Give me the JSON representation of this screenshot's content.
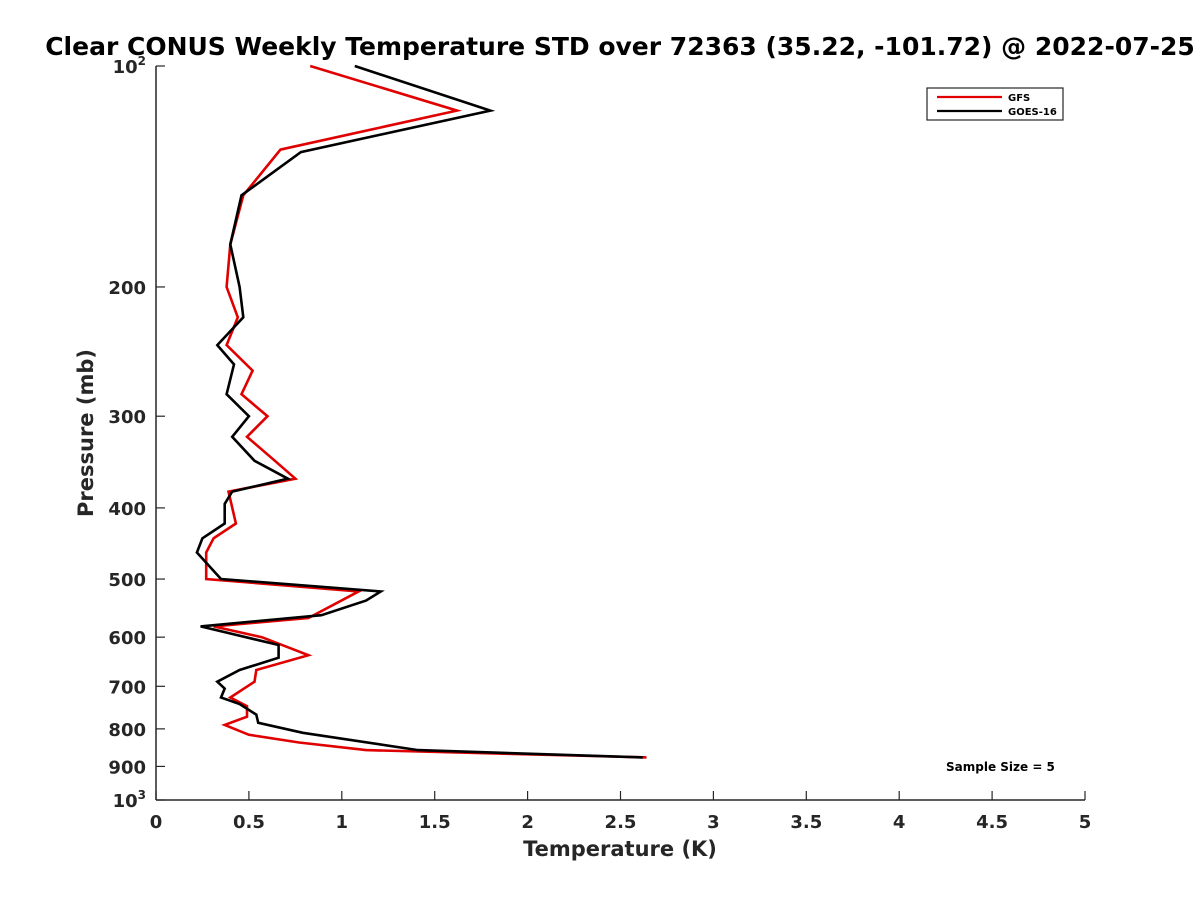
{
  "chart_data": {
    "type": "line",
    "title": "Clear CONUS Weekly Temperature STD over 72363 (35.22, -101.72) @ 2022-07-25",
    "xlabel": "Temperature (K)",
    "ylabel": "Pressure (mb)",
    "xlim": [
      0,
      5
    ],
    "ylim": [
      100,
      1000
    ],
    "y_scale": "log",
    "y_reversed": true,
    "grid": false,
    "legend_position": "top-right",
    "x_ticks": [
      "0",
      "0.5",
      "1",
      "1.5",
      "2",
      "2.5",
      "3",
      "3.5",
      "4",
      "4.5",
      "5"
    ],
    "x_tick_values": [
      0,
      0.5,
      1,
      1.5,
      2,
      2.5,
      3,
      3.5,
      4,
      4.5,
      5
    ],
    "y_ticks": [
      {
        "value": 100,
        "base": "10",
        "exp": "2"
      },
      {
        "value": 200,
        "label": "200"
      },
      {
        "value": 300,
        "label": "300"
      },
      {
        "value": 400,
        "label": "400"
      },
      {
        "value": 500,
        "label": "500"
      },
      {
        "value": 600,
        "label": "600"
      },
      {
        "value": 700,
        "label": "700"
      },
      {
        "value": 800,
        "label": "800"
      },
      {
        "value": 900,
        "label": "900"
      },
      {
        "value": 1000,
        "base": "10",
        "exp": "3"
      }
    ],
    "annotation": "Sample Size = 5",
    "series": [
      {
        "name": "GFS",
        "color": "#e00000",
        "points": [
          [
            0.83,
            100
          ],
          [
            1.62,
            115
          ],
          [
            0.67,
            130
          ],
          [
            0.47,
            150
          ],
          [
            0.4,
            175
          ],
          [
            0.38,
            200
          ],
          [
            0.44,
            220
          ],
          [
            0.38,
            240
          ],
          [
            0.52,
            260
          ],
          [
            0.46,
            280
          ],
          [
            0.6,
            300
          ],
          [
            0.49,
            320
          ],
          [
            0.64,
            345
          ],
          [
            0.75,
            365
          ],
          [
            0.39,
            380
          ],
          [
            0.43,
            420
          ],
          [
            0.31,
            440
          ],
          [
            0.27,
            460
          ],
          [
            0.27,
            500
          ],
          [
            1.09,
            520
          ],
          [
            0.82,
            565
          ],
          [
            0.31,
            580
          ],
          [
            0.57,
            600
          ],
          [
            0.82,
            635
          ],
          [
            0.54,
            665
          ],
          [
            0.53,
            690
          ],
          [
            0.4,
            725
          ],
          [
            0.49,
            745
          ],
          [
            0.49,
            770
          ],
          [
            0.37,
            790
          ],
          [
            0.5,
            815
          ],
          [
            0.77,
            835
          ],
          [
            1.13,
            855
          ],
          [
            2.64,
            875
          ]
        ]
      },
      {
        "name": "GOES-16",
        "color": "#000000",
        "points": [
          [
            1.07,
            100
          ],
          [
            1.8,
            115
          ],
          [
            0.78,
            131
          ],
          [
            0.46,
            150
          ],
          [
            0.4,
            175
          ],
          [
            0.45,
            200
          ],
          [
            0.47,
            220
          ],
          [
            0.33,
            240
          ],
          [
            0.42,
            255
          ],
          [
            0.38,
            280
          ],
          [
            0.5,
            300
          ],
          [
            0.41,
            320
          ],
          [
            0.53,
            345
          ],
          [
            0.71,
            365
          ],
          [
            0.41,
            380
          ],
          [
            0.37,
            395
          ],
          [
            0.37,
            420
          ],
          [
            0.25,
            440
          ],
          [
            0.22,
            460
          ],
          [
            0.35,
            500
          ],
          [
            1.21,
            520
          ],
          [
            1.13,
            535
          ],
          [
            0.89,
            560
          ],
          [
            0.24,
            580
          ],
          [
            0.66,
            615
          ],
          [
            0.66,
            640
          ],
          [
            0.45,
            665
          ],
          [
            0.33,
            690
          ],
          [
            0.37,
            705
          ],
          [
            0.35,
            725
          ],
          [
            0.45,
            740
          ],
          [
            0.54,
            765
          ],
          [
            0.55,
            785
          ],
          [
            0.79,
            810
          ],
          [
            1.41,
            855
          ],
          [
            2.62,
            875
          ]
        ]
      }
    ]
  }
}
